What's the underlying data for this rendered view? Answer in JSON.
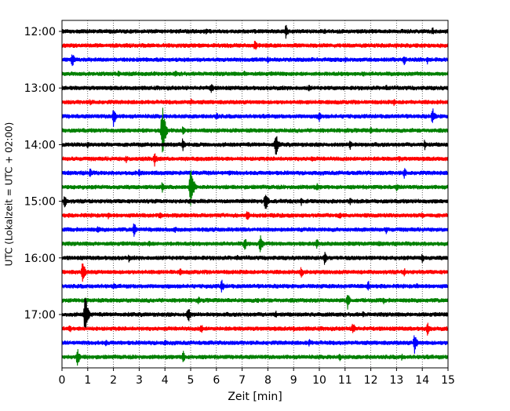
{
  "chart_data": {
    "type": "line",
    "title": "",
    "xlabel": "Zeit  [min]",
    "ylabel": "UTC (Lokalzeit = UTC + 02:00)",
    "xlim": [
      0,
      15
    ],
    "x_ticks": [
      0,
      1,
      2,
      3,
      4,
      5,
      6,
      7,
      8,
      9,
      10,
      11,
      12,
      13,
      14,
      15
    ],
    "x_grid": "dotted",
    "trace_interval_minutes": 15,
    "y_ticks": [
      {
        "label": "12:00",
        "row": 0
      },
      {
        "label": "13:00",
        "row": 4
      },
      {
        "label": "14:00",
        "row": 8
      },
      {
        "label": "15:00",
        "row": 12
      },
      {
        "label": "16:00",
        "row": 16
      },
      {
        "label": "17:00",
        "row": 20
      }
    ],
    "color_cycle": [
      "#000000",
      "#ff0000",
      "#0000ff",
      "#008000"
    ],
    "traces": [
      {
        "start": "12:00",
        "color": "#000000",
        "events": [
          [
            8.7,
            10
          ],
          [
            5.6,
            6
          ],
          [
            14.4,
            6
          ],
          [
            10.2,
            5
          ]
        ]
      },
      {
        "start": "12:15",
        "color": "#ff0000",
        "events": [
          [
            7.5,
            8
          ],
          [
            2.0,
            4
          ],
          [
            13.0,
            4
          ]
        ]
      },
      {
        "start": "12:30",
        "color": "#0000ff",
        "events": [
          [
            0.4,
            10
          ],
          [
            13.3,
            8
          ],
          [
            14.2,
            6
          ],
          [
            8.0,
            5
          ],
          [
            11.0,
            5
          ]
        ]
      },
      {
        "start": "12:45",
        "color": "#008000",
        "events": [
          [
            2.2,
            6
          ],
          [
            4.4,
            6
          ],
          [
            7.1,
            5
          ],
          [
            11.7,
            5
          ]
        ]
      },
      {
        "start": "13:00",
        "color": "#000000",
        "events": [
          [
            5.8,
            8
          ],
          [
            9.6,
            6
          ],
          [
            12.6,
            5
          ]
        ]
      },
      {
        "start": "13:15",
        "color": "#ff0000",
        "events": [
          [
            1.1,
            5
          ],
          [
            5.0,
            6
          ],
          [
            12.9,
            5
          ]
        ]
      },
      {
        "start": "13:30",
        "color": "#0000ff",
        "events": [
          [
            2.0,
            14
          ],
          [
            10.0,
            8
          ],
          [
            14.4,
            12
          ],
          [
            6.0,
            6
          ]
        ]
      },
      {
        "start": "13:45",
        "color": "#008000",
        "events": [
          [
            3.9,
            38
          ],
          [
            4.7,
            8
          ],
          [
            12.0,
            6
          ]
        ]
      },
      {
        "start": "14:00",
        "color": "#000000",
        "events": [
          [
            8.3,
            18
          ],
          [
            4.7,
            10
          ],
          [
            11.2,
            8
          ],
          [
            1.0,
            6
          ],
          [
            14.1,
            8
          ]
        ]
      },
      {
        "start": "14:15",
        "color": "#ff0000",
        "events": [
          [
            3.6,
            10
          ],
          [
            2.5,
            6
          ],
          [
            9.7,
            5
          ],
          [
            13.1,
            5
          ]
        ]
      },
      {
        "start": "14:30",
        "color": "#0000ff",
        "events": [
          [
            1.1,
            8
          ],
          [
            3.0,
            6
          ],
          [
            13.3,
            8
          ],
          [
            6.5,
            5
          ]
        ]
      },
      {
        "start": "14:45",
        "color": "#008000",
        "events": [
          [
            5.0,
            32
          ],
          [
            3.9,
            8
          ],
          [
            9.9,
            6
          ],
          [
            13.0,
            6
          ]
        ]
      },
      {
        "start": "15:00",
        "color": "#000000",
        "events": [
          [
            7.9,
            16
          ],
          [
            0.1,
            10
          ],
          [
            9.3,
            6
          ],
          [
            11.2,
            5
          ]
        ]
      },
      {
        "start": "15:15",
        "color": "#ff0000",
        "events": [
          [
            7.2,
            8
          ],
          [
            3.8,
            6
          ],
          [
            10.8,
            6
          ],
          [
            1.8,
            6
          ],
          [
            14.0,
            5
          ]
        ]
      },
      {
        "start": "15:30",
        "color": "#0000ff",
        "events": [
          [
            2.8,
            12
          ],
          [
            1.4,
            6
          ],
          [
            12.6,
            6
          ],
          [
            4.4,
            5
          ]
        ]
      },
      {
        "start": "15:45",
        "color": "#008000",
        "events": [
          [
            7.7,
            14
          ],
          [
            7.1,
            10
          ],
          [
            9.9,
            8
          ],
          [
            3.4,
            6
          ],
          [
            12.3,
            5
          ]
        ]
      },
      {
        "start": "16:00",
        "color": "#000000",
        "events": [
          [
            10.2,
            10
          ],
          [
            14.0,
            8
          ],
          [
            2.6,
            6
          ],
          [
            6.8,
            5
          ]
        ]
      },
      {
        "start": "16:15",
        "color": "#ff0000",
        "events": [
          [
            0.8,
            16
          ],
          [
            9.3,
            8
          ],
          [
            13.3,
            6
          ],
          [
            4.6,
            6
          ]
        ]
      },
      {
        "start": "16:30",
        "color": "#0000ff",
        "events": [
          [
            6.2,
            10
          ],
          [
            11.9,
            8
          ],
          [
            2.0,
            5
          ],
          [
            13.8,
            5
          ]
        ]
      },
      {
        "start": "16:45",
        "color": "#008000",
        "events": [
          [
            11.1,
            12
          ],
          [
            5.3,
            6
          ],
          [
            12.5,
            5
          ],
          [
            7.6,
            5
          ]
        ]
      },
      {
        "start": "17:00",
        "color": "#000000",
        "events": [
          [
            0.9,
            30
          ],
          [
            4.9,
            12
          ],
          [
            8.3,
            6
          ],
          [
            11.7,
            5
          ]
        ]
      },
      {
        "start": "17:15",
        "color": "#ff0000",
        "events": [
          [
            11.3,
            10
          ],
          [
            5.4,
            8
          ],
          [
            14.2,
            10
          ],
          [
            0.3,
            6
          ],
          [
            9.0,
            5
          ]
        ]
      },
      {
        "start": "17:30",
        "color": "#0000ff",
        "events": [
          [
            13.7,
            14
          ],
          [
            9.6,
            6
          ],
          [
            4.0,
            5
          ],
          [
            1.7,
            5
          ]
        ]
      },
      {
        "start": "17:45",
        "color": "#008000",
        "events": [
          [
            0.6,
            12
          ],
          [
            4.7,
            10
          ],
          [
            10.8,
            6
          ],
          [
            13.2,
            5
          ]
        ]
      }
    ]
  }
}
